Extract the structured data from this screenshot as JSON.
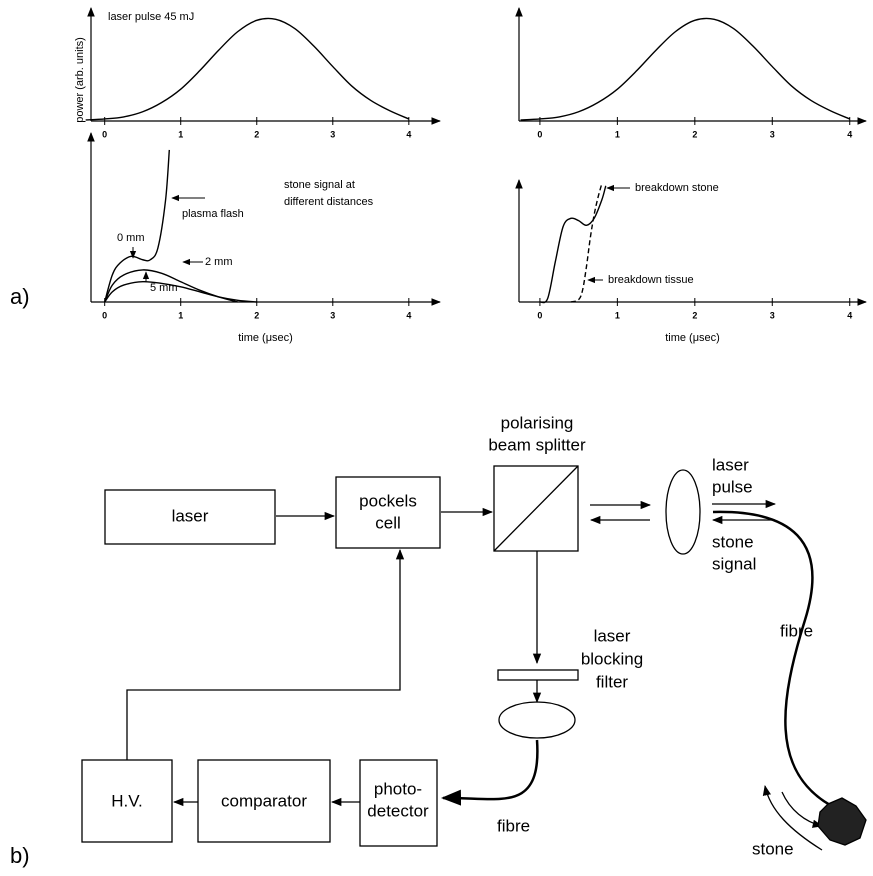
{
  "panel_labels": [
    "a)",
    "b)"
  ],
  "chart_data": [
    {
      "type": "line",
      "xlim": [
        -0.18,
        4.41
      ],
      "ylim": [
        0,
        1.1
      ],
      "xticks": [
        0,
        1,
        2,
        3,
        4
      ],
      "annotation": "laser pulse 45 mJ",
      "ylabel": "power (arb. units)",
      "series": [
        {
          "color": "#000000",
          "x": [
            -0.25,
            0,
            0.25,
            0.5,
            0.75,
            1,
            1.25,
            1.5,
            1.75,
            2,
            2.25,
            2.5,
            2.75,
            3,
            3.25,
            3.5,
            3.75,
            4
          ],
          "values": [
            0.01,
            0.02,
            0.04,
            0.09,
            0.18,
            0.31,
            0.49,
            0.69,
            0.87,
            0.98,
            0.99,
            0.9,
            0.73,
            0.53,
            0.34,
            0.2,
            0.1,
            0.02
          ]
        }
      ]
    },
    {
      "type": "line",
      "xlim": [
        -0.18,
        4.41
      ],
      "ylim": [
        0,
        1
      ],
      "xticks": [
        0,
        1,
        2,
        3,
        4
      ],
      "xlabel": "time (μsec)",
      "annotation": [
        "stone signal at",
        "different distances"
      ],
      "flash_label": "plasma flash",
      "series": [
        {
          "name": "0 mm",
          "color": "#000000",
          "x": [
            0,
            0.1,
            0.2,
            0.35,
            0.5,
            0.6,
            0.7,
            0.8,
            0.85
          ],
          "values": [
            0,
            0.16,
            0.23,
            0.27,
            0.25,
            0.25,
            0.32,
            0.6,
            0.9
          ]
        },
        {
          "name": "2 mm",
          "color": "#000000",
          "x": [
            0,
            0.1,
            0.25,
            0.5,
            0.75,
            1,
            1.25,
            1.5,
            1.75
          ],
          "values": [
            0,
            0.1,
            0.16,
            0.19,
            0.17,
            0.12,
            0.07,
            0.03,
            0
          ]
        },
        {
          "name": "5 mm",
          "color": "#000000",
          "x": [
            0,
            0.1,
            0.25,
            0.5,
            0.75,
            1,
            1.25,
            1.5,
            1.75,
            2
          ],
          "values": [
            0,
            0.06,
            0.1,
            0.12,
            0.11,
            0.09,
            0.06,
            0.03,
            0.01,
            0
          ]
        }
      ]
    },
    {
      "type": "line",
      "xlim": [
        -0.27,
        4.21
      ],
      "ylim": [
        0,
        1.1
      ],
      "xticks": [
        0,
        1,
        2,
        3,
        4
      ],
      "series": [
        {
          "color": "#000000",
          "x": [
            -0.25,
            0,
            0.25,
            0.5,
            0.75,
            1,
            1.25,
            1.5,
            1.75,
            2,
            2.25,
            2.5,
            2.75,
            3,
            3.25,
            3.5,
            3.75,
            4
          ],
          "values": [
            0.01,
            0.02,
            0.04,
            0.09,
            0.18,
            0.31,
            0.49,
            0.69,
            0.87,
            0.98,
            0.99,
            0.9,
            0.73,
            0.53,
            0.34,
            0.2,
            0.1,
            0.02
          ]
        }
      ]
    },
    {
      "type": "line",
      "xlim": [
        -0.27,
        4.21
      ],
      "ylim": [
        0,
        1.05
      ],
      "xticks": [
        0,
        1,
        2,
        3,
        4
      ],
      "xlabel": "time (μsec)",
      "series": [
        {
          "name": "breakdown stone",
          "color": "#000000",
          "line_style": "solid",
          "x": [
            0,
            0.1,
            0.2,
            0.3,
            0.4,
            0.5,
            0.6,
            0.7,
            0.8,
            0.85
          ],
          "values": [
            0,
            0.03,
            0.35,
            0.65,
            0.72,
            0.7,
            0.66,
            0.72,
            0.88,
            1.0
          ]
        },
        {
          "name": "breakdown tissue",
          "color": "#000000",
          "line_style": "dashed",
          "x": [
            0.4,
            0.5,
            0.55,
            0.6,
            0.65,
            0.7,
            0.75,
            0.8
          ],
          "values": [
            0,
            0.02,
            0.1,
            0.3,
            0.55,
            0.75,
            0.9,
            1.02
          ]
        }
      ]
    }
  ],
  "diagram": {
    "laser": "laser",
    "pockels_cell": [
      "pockels",
      "cell"
    ],
    "beam_splitter": [
      "polarising",
      "beam splitter"
    ],
    "laser_pulse": [
      "laser",
      "pulse"
    ],
    "stone_signal": [
      "stone",
      "signal"
    ],
    "fibre_top": "fibre",
    "filter": [
      "laser",
      "blocking",
      "filter"
    ],
    "stone": "stone",
    "fibre_bottom": "fibre",
    "photo_detector": [
      "photo-",
      "detector"
    ],
    "comparator": "comparator",
    "hv": "H.V."
  }
}
